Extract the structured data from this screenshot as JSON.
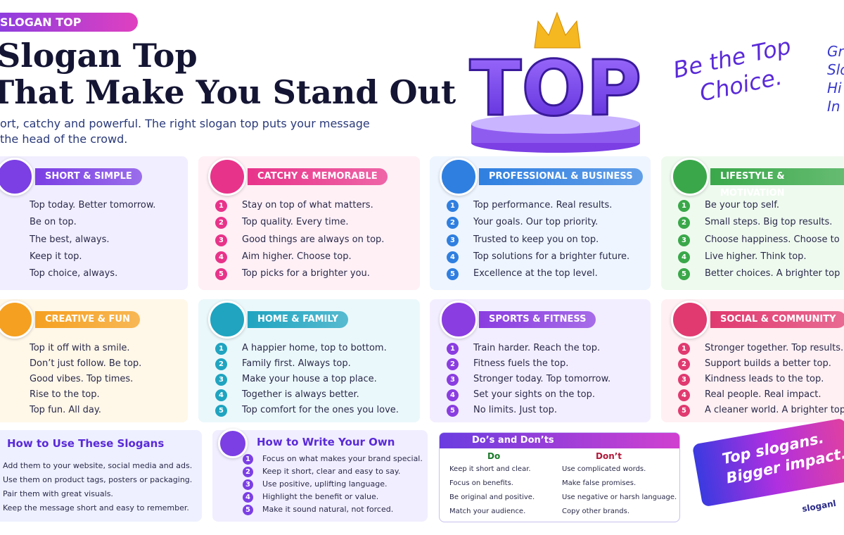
{
  "header": {
    "badge": "SLOGAN TOP",
    "title_lines": [
      "Slogan Top",
      "That Make You Stand Out"
    ],
    "subtitle_lines": [
      "ort, catchy and powerful. The right slogan top puts your message",
      "the head of the crowd."
    ]
  },
  "hero": {
    "word": "TOP",
    "tagline_lines": [
      "Be the Top",
      "Choice."
    ]
  },
  "side_fragments": [
    "Gr",
    "Slo",
    "Hi",
    "In"
  ],
  "cards": [
    {
      "title": "SHORT & SIMPLE",
      "items": [
        "Top today. Better tomorrow.",
        "Be on top.",
        "The best, always.",
        "Keep it top.",
        "Top choice, always."
      ]
    },
    {
      "title": "CATCHY & MEMORABLE",
      "numbers": [
        1,
        2,
        3,
        4,
        5
      ],
      "items": [
        "Stay on top of what matters.",
        "Top quality. Every time.",
        "Good things are always on top.",
        "Aim higher. Choose top.",
        "Top picks for a brighter you."
      ]
    },
    {
      "title": "PROFESSIONAL & BUSINESS",
      "numbers": [
        1,
        2,
        3,
        4,
        5
      ],
      "items": [
        "Top performance. Real results.",
        "Your goals. Our top priority.",
        "Trusted to keep you on top.",
        "Top solutions for a brighter future.",
        "Excellence at the top level."
      ]
    },
    {
      "title": "LIFESTYLE & MOTIVATION",
      "numbers": [
        1,
        2,
        3,
        4,
        5
      ],
      "items": [
        "Be your top self.",
        "Small steps. Big top results.",
        "Choose happiness. Choose to",
        "Live higher. Think top.",
        "Better choices. A brighter top"
      ]
    },
    {
      "title": "CREATIVE & FUN",
      "items": [
        "Top it off with a smile.",
        "Don’t just follow. Be top.",
        "Good vibes. Top times.",
        "Rise to the top.",
        "Top fun. All day."
      ]
    },
    {
      "title": "HOME & FAMILY",
      "numbers": [
        1,
        2,
        3,
        4,
        5
      ],
      "items": [
        "A happier home, top to bottom.",
        "Family first. Always top.",
        "Make your house a top place.",
        "Together is always better.",
        "Top comfort for the ones you love."
      ]
    },
    {
      "title": "SPORTS & FITNESS",
      "numbers": [
        1,
        2,
        3,
        4,
        5
      ],
      "items": [
        "Train harder. Reach the top.",
        "Fitness fuels the top.",
        "Stronger today. Top tomorrow.",
        "Set your sights on the top.",
        "No limits. Just top."
      ]
    },
    {
      "title": "SOCIAL & COMMUNITY",
      "numbers": [
        1,
        2,
        3,
        4,
        5
      ],
      "items": [
        "Stronger together. Top results.",
        "Support builds a better top.",
        "Kindness leads to the top.",
        "Real people. Real impact.",
        "A cleaner world. A brighter top"
      ]
    }
  ],
  "how_to_use": {
    "title": "How to Use These Slogans",
    "items": [
      "Add them to your website, social media and ads.",
      "Use them on product tags, posters or packaging.",
      "Pair them with great visuals.",
      "Keep the message short and easy to remember."
    ]
  },
  "how_to_write": {
    "title": "How to Write Your Own",
    "numbers": [
      1,
      2,
      3,
      4,
      5
    ],
    "items": [
      "Focus on what makes your brand special.",
      "Keep it short, clear and easy to say.",
      "Use positive, uplifting language.",
      "Highlight the benefit or value.",
      "Make it sound natural, not forced."
    ]
  },
  "dos_donts": {
    "title": "Do’s and Don’ts",
    "do_label": "Do",
    "dont_label": "Don’t",
    "do_items": [
      "Keep it short and clear.",
      "Focus on benefits.",
      "Be original and positive.",
      "Match your audience."
    ],
    "dont_items": [
      "Use complicated words.",
      "Make false promises.",
      "Use negative or harsh language.",
      "Copy other brands."
    ]
  },
  "banner": {
    "lines": [
      "Top slogans.",
      "Bigger impact."
    ],
    "site": "sloganl"
  }
}
